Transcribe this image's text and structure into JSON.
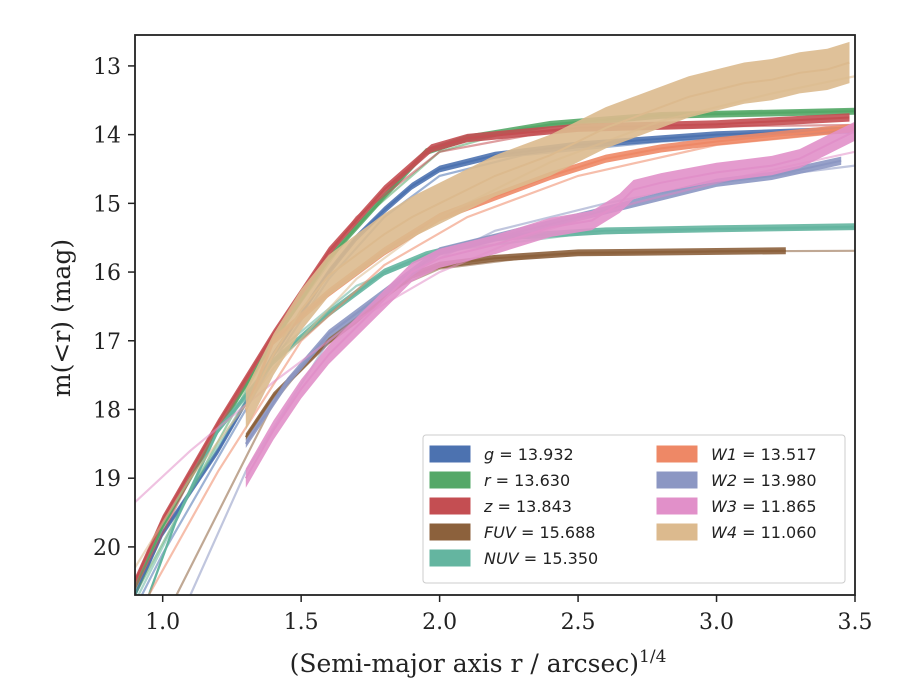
{
  "chart_data": {
    "type": "line",
    "title": "",
    "xlabel": "(Semi-major axis r / arcsec)",
    "xlabel_sup": "1/4",
    "ylabel": "m(<r) (mag)",
    "xlim": [
      0.9,
      3.5
    ],
    "ylim": [
      20.7,
      12.55
    ],
    "y_inverted": true,
    "grid": false,
    "x_ticks": [
      {
        "value": 1.0,
        "label": "1.0"
      },
      {
        "value": 1.5,
        "label": "1.5"
      },
      {
        "value": 2.0,
        "label": "2.0"
      },
      {
        "value": 2.5,
        "label": "2.5"
      },
      {
        "value": 3.0,
        "label": "3.0"
      },
      {
        "value": 3.5,
        "label": "3.5"
      }
    ],
    "y_ticks": [
      {
        "value": 13,
        "label": "13"
      },
      {
        "value": 14,
        "label": "14"
      },
      {
        "value": 15,
        "label": "15"
      },
      {
        "value": 16,
        "label": "16"
      },
      {
        "value": 17,
        "label": "17"
      },
      {
        "value": 18,
        "label": "18"
      },
      {
        "value": 19,
        "label": "19"
      },
      {
        "value": 20,
        "label": "20"
      }
    ],
    "legend_position": "lower-right",
    "series": [
      {
        "name": "g",
        "legend_value": "13.932",
        "color": "#4c72b0",
        "data": [
          [
            0.9,
            20.7
          ],
          [
            1.0,
            19.8
          ],
          [
            1.2,
            18.6
          ],
          [
            1.4,
            17.2
          ],
          [
            1.5,
            16.6
          ],
          [
            1.6,
            16.0
          ],
          [
            1.7,
            15.5
          ],
          [
            1.8,
            15.1
          ],
          [
            1.9,
            14.75
          ],
          [
            2.0,
            14.5
          ],
          [
            2.2,
            14.3
          ],
          [
            2.5,
            14.15
          ],
          [
            3.0,
            14.0
          ],
          [
            3.5,
            13.93
          ]
        ],
        "band": 0.05,
        "model": [
          [
            0.9,
            20.9
          ],
          [
            1.0,
            20.1
          ],
          [
            1.2,
            18.7
          ],
          [
            1.4,
            17.3
          ],
          [
            1.6,
            16.1
          ],
          [
            1.8,
            15.2
          ],
          [
            2.0,
            14.6
          ],
          [
            2.3,
            14.3
          ],
          [
            2.8,
            14.1
          ],
          [
            3.5,
            13.95
          ]
        ]
      },
      {
        "name": "r",
        "legend_value": "13.630",
        "color": "#55a868",
        "data": [
          [
            0.9,
            20.6
          ],
          [
            1.0,
            19.7
          ],
          [
            1.2,
            18.3
          ],
          [
            1.4,
            17.0
          ],
          [
            1.6,
            15.8
          ],
          [
            1.8,
            14.9
          ],
          [
            1.95,
            14.25
          ],
          [
            2.1,
            14.05
          ],
          [
            2.4,
            13.85
          ],
          [
            2.8,
            13.72
          ],
          [
            3.5,
            13.66
          ]
        ],
        "band": 0.05,
        "model": [
          [
            0.9,
            20.7
          ],
          [
            1.1,
            19.2
          ],
          [
            1.4,
            17.0
          ],
          [
            1.7,
            15.3
          ],
          [
            2.0,
            14.25
          ],
          [
            2.3,
            13.9
          ],
          [
            2.8,
            13.7
          ],
          [
            3.5,
            13.64
          ]
        ]
      },
      {
        "name": "z",
        "legend_value": "13.843",
        "color": "#c44e52",
        "data": [
          [
            0.9,
            20.5
          ],
          [
            1.0,
            19.6
          ],
          [
            1.2,
            18.2
          ],
          [
            1.4,
            16.9
          ],
          [
            1.6,
            15.7
          ],
          [
            1.8,
            14.8
          ],
          [
            1.97,
            14.2
          ],
          [
            2.1,
            14.05
          ],
          [
            2.5,
            13.9
          ],
          [
            3.0,
            13.85
          ],
          [
            3.48,
            13.75
          ]
        ],
        "band": 0.06,
        "model": [
          [
            0.9,
            20.6
          ],
          [
            1.1,
            19.0
          ],
          [
            1.4,
            16.9
          ],
          [
            1.7,
            15.2
          ],
          [
            2.0,
            14.25
          ],
          [
            2.4,
            13.95
          ],
          [
            3.0,
            13.88
          ],
          [
            3.5,
            13.86
          ]
        ]
      },
      {
        "name": "FUV",
        "legend_value": "15.688",
        "color": "#8c613c",
        "data": [
          [
            1.3,
            18.4
          ],
          [
            1.4,
            17.8
          ],
          [
            1.5,
            17.4
          ],
          [
            1.6,
            17.0
          ],
          [
            1.7,
            16.7
          ],
          [
            1.8,
            16.35
          ],
          [
            1.9,
            16.05
          ],
          [
            2.0,
            15.9
          ],
          [
            2.2,
            15.8
          ],
          [
            2.5,
            15.72
          ],
          [
            3.0,
            15.7
          ],
          [
            3.25,
            15.69
          ]
        ],
        "band": 0.05,
        "model": [
          [
            1.05,
            20.7
          ],
          [
            1.2,
            19.5
          ],
          [
            1.4,
            17.9
          ],
          [
            1.6,
            16.9
          ],
          [
            1.8,
            16.3
          ],
          [
            2.0,
            15.95
          ],
          [
            2.4,
            15.75
          ],
          [
            3.0,
            15.7
          ],
          [
            3.5,
            15.69
          ]
        ]
      },
      {
        "name": "NUV",
        "legend_value": "15.350",
        "color": "#64b5a0",
        "data": [
          [
            0.95,
            20.7
          ],
          [
            1.05,
            19.6
          ],
          [
            1.2,
            18.3
          ],
          [
            1.4,
            17.3
          ],
          [
            1.6,
            16.6
          ],
          [
            1.8,
            16.0
          ],
          [
            1.95,
            15.75
          ],
          [
            2.2,
            15.5
          ],
          [
            2.6,
            15.4
          ],
          [
            3.0,
            15.37
          ],
          [
            3.5,
            15.34
          ]
        ],
        "band": 0.05,
        "model": [
          [
            0.9,
            20.8
          ],
          [
            1.1,
            19.2
          ],
          [
            1.4,
            17.2
          ],
          [
            1.7,
            16.2
          ],
          [
            2.0,
            15.7
          ],
          [
            2.5,
            15.45
          ],
          [
            3.0,
            15.38
          ],
          [
            3.5,
            15.36
          ]
        ]
      },
      {
        "name": "W1",
        "legend_value": "13.517",
        "color": "#ee8866",
        "data": [
          [
            1.3,
            18.0
          ],
          [
            1.4,
            17.0
          ],
          [
            1.6,
            16.3
          ],
          [
            1.8,
            15.7
          ],
          [
            2.0,
            15.2
          ],
          [
            2.2,
            14.9
          ],
          [
            2.4,
            14.6
          ],
          [
            2.6,
            14.35
          ],
          [
            2.8,
            14.2
          ],
          [
            3.0,
            14.1
          ],
          [
            3.5,
            13.9
          ]
        ],
        "band": 0.06,
        "model": [
          [
            0.95,
            20.7
          ],
          [
            1.2,
            18.9
          ],
          [
            1.5,
            17.0
          ],
          [
            1.8,
            15.9
          ],
          [
            2.1,
            15.2
          ],
          [
            2.5,
            14.6
          ],
          [
            3.0,
            14.15
          ],
          [
            3.5,
            13.95
          ]
        ]
      },
      {
        "name": "W2",
        "legend_value": "13.980",
        "color": "#8c97c3",
        "data": [
          [
            1.3,
            18.5
          ],
          [
            1.45,
            17.6
          ],
          [
            1.6,
            16.9
          ],
          [
            1.8,
            16.3
          ],
          [
            1.9,
            16.0
          ],
          [
            2.0,
            15.7
          ],
          [
            2.2,
            15.5
          ],
          [
            2.5,
            15.2
          ],
          [
            2.8,
            14.9
          ],
          [
            3.0,
            14.7
          ],
          [
            3.2,
            14.6
          ],
          [
            3.45,
            14.38
          ]
        ],
        "band": 0.06,
        "model": [
          [
            1.1,
            20.7
          ],
          [
            1.3,
            18.9
          ],
          [
            1.6,
            17.0
          ],
          [
            1.9,
            16.0
          ],
          [
            2.2,
            15.4
          ],
          [
            2.6,
            15.0
          ],
          [
            3.0,
            14.7
          ],
          [
            3.5,
            14.45
          ]
        ]
      },
      {
        "name": "W3",
        "legend_value": "11.865",
        "color": "#e190c9",
        "data": [
          [
            1.3,
            19.0
          ],
          [
            1.4,
            18.3
          ],
          [
            1.5,
            17.7
          ],
          [
            1.6,
            17.2
          ],
          [
            1.7,
            16.8
          ],
          [
            1.8,
            16.4
          ],
          [
            1.9,
            16.0
          ],
          [
            2.0,
            15.8
          ],
          [
            2.2,
            15.6
          ],
          [
            2.4,
            15.35
          ],
          [
            2.55,
            15.25
          ],
          [
            2.65,
            15.0
          ],
          [
            2.7,
            14.8
          ],
          [
            2.8,
            14.7
          ],
          [
            3.0,
            14.55
          ],
          [
            3.1,
            14.5
          ],
          [
            3.2,
            14.45
          ],
          [
            3.3,
            14.35
          ],
          [
            3.4,
            14.15
          ],
          [
            3.5,
            13.95
          ]
        ],
        "band": 0.14,
        "model": [
          [
            0.9,
            19.35
          ],
          [
            1.1,
            18.6
          ],
          [
            1.4,
            17.6
          ],
          [
            1.7,
            16.7
          ],
          [
            2.0,
            16.0
          ],
          [
            2.3,
            15.5
          ],
          [
            2.7,
            15.0
          ],
          [
            3.1,
            14.6
          ],
          [
            3.5,
            14.25
          ]
        ]
      },
      {
        "name": "W4",
        "legend_value": "11.060",
        "color": "#dcba8e",
        "data": [
          [
            1.3,
            18.0
          ],
          [
            1.4,
            17.2
          ],
          [
            1.5,
            16.55
          ],
          [
            1.6,
            16.05
          ],
          [
            1.7,
            15.75
          ],
          [
            1.8,
            15.45
          ],
          [
            1.9,
            15.2
          ],
          [
            2.0,
            15.0
          ],
          [
            2.1,
            14.8
          ],
          [
            2.2,
            14.6
          ],
          [
            2.3,
            14.45
          ],
          [
            2.4,
            14.3
          ],
          [
            2.5,
            14.1
          ],
          [
            2.6,
            13.9
          ],
          [
            2.7,
            13.75
          ],
          [
            2.8,
            13.6
          ],
          [
            2.9,
            13.45
          ],
          [
            3.0,
            13.35
          ],
          [
            3.1,
            13.25
          ],
          [
            3.2,
            13.2
          ],
          [
            3.3,
            13.1
          ],
          [
            3.4,
            13.05
          ],
          [
            3.48,
            12.95
          ]
        ],
        "band": 0.3,
        "model": [
          [
            0.9,
            20.3
          ],
          [
            1.1,
            19.0
          ],
          [
            1.4,
            17.4
          ],
          [
            1.7,
            16.1
          ],
          [
            2.0,
            15.2
          ],
          [
            2.4,
            14.4
          ],
          [
            2.8,
            13.8
          ],
          [
            3.2,
            13.4
          ],
          [
            3.5,
            13.15
          ]
        ]
      }
    ]
  }
}
